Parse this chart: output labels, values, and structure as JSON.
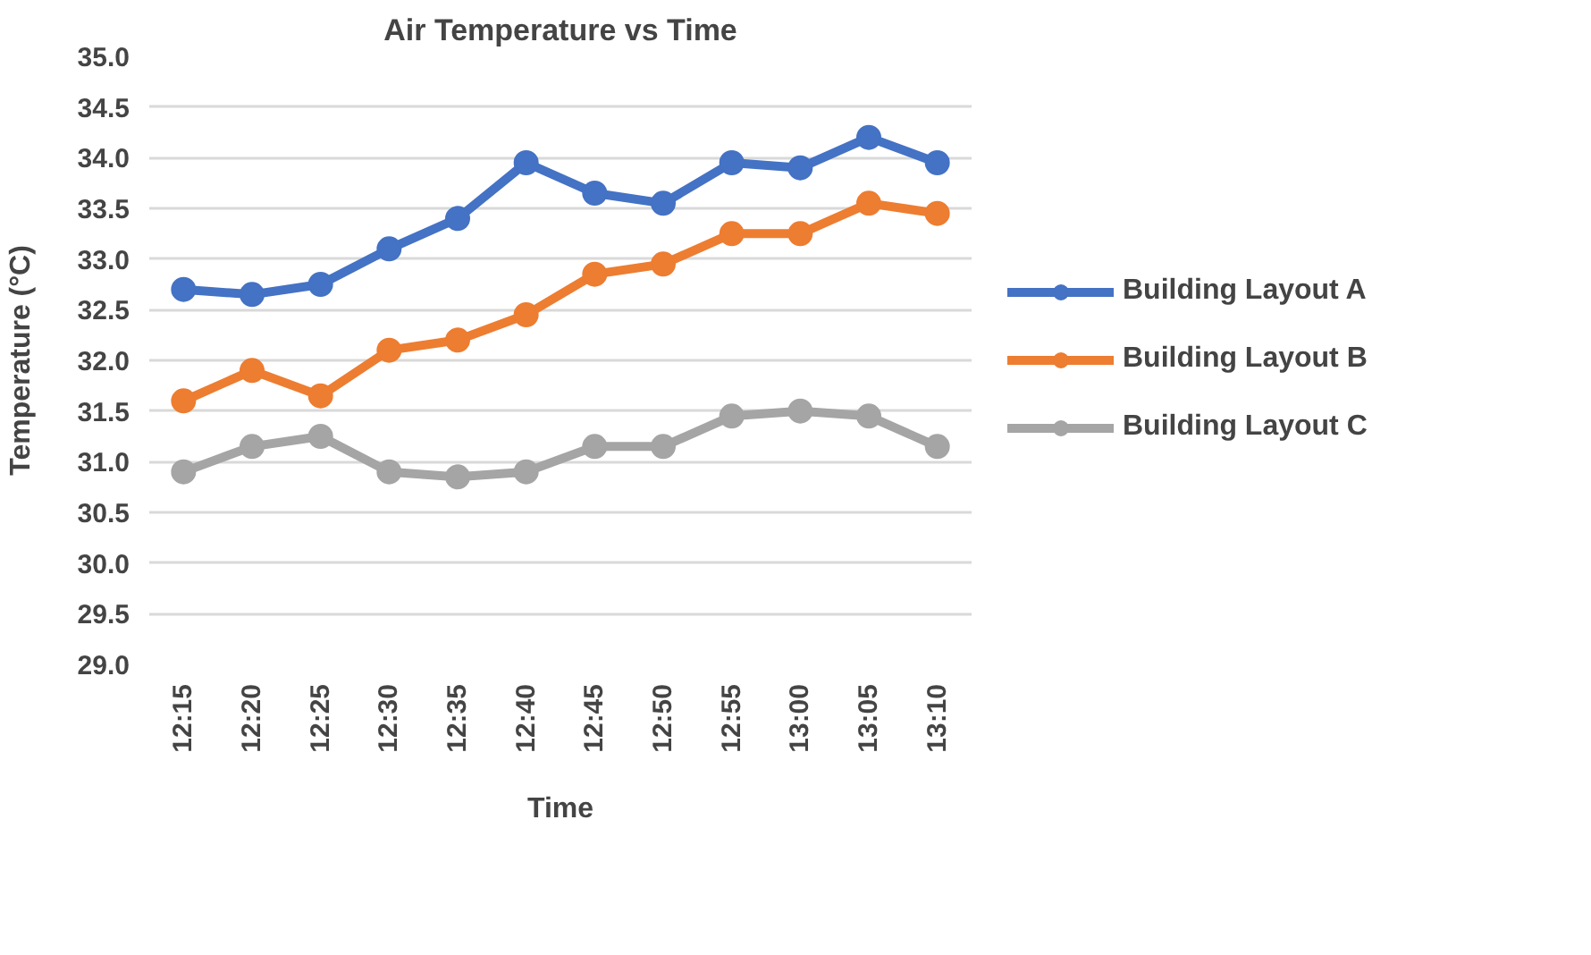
{
  "chart_data": {
    "type": "line",
    "title": "Air Temperature vs Time",
    "xlabel": "Time",
    "ylabel": "Temperature (°C)",
    "categories": [
      "12:15",
      "12:20",
      "12:25",
      "12:30",
      "12:35",
      "12:40",
      "12:45",
      "12:50",
      "12:55",
      "13:00",
      "13:05",
      "13:10"
    ],
    "series": [
      {
        "name": "Building Layout A",
        "color": "#4472c4",
        "values": [
          32.7,
          32.65,
          32.75,
          33.1,
          33.4,
          33.95,
          33.65,
          33.55,
          33.95,
          33.9,
          34.2,
          33.95
        ]
      },
      {
        "name": "Building Layout B",
        "color": "#ed7d31",
        "values": [
          31.6,
          31.9,
          31.65,
          32.1,
          32.2,
          32.45,
          32.85,
          32.95,
          33.25,
          33.25,
          33.55,
          33.45
        ]
      },
      {
        "name": "Building Layout C",
        "color": "#a5a5a5",
        "values": [
          30.9,
          31.15,
          31.25,
          30.9,
          30.85,
          30.9,
          31.15,
          31.15,
          31.45,
          31.5,
          31.45,
          31.15
        ]
      }
    ],
    "ylim": [
      29.0,
      35.0
    ],
    "yticks": [
      {
        "value": 29,
        "label": "29.0"
      },
      {
        "value": 29.5,
        "label": "29.5"
      },
      {
        "value": 30,
        "label": "30.0"
      },
      {
        "value": 30.5,
        "label": "30.5"
      },
      {
        "value": 31,
        "label": "31.0"
      },
      {
        "value": 31.5,
        "label": "31.5"
      },
      {
        "value": 32,
        "label": "32.0"
      },
      {
        "value": 32.5,
        "label": "32.5"
      },
      {
        "value": 33,
        "label": "33.0"
      },
      {
        "value": 33.5,
        "label": "33.5"
      },
      {
        "value": 34,
        "label": "34.0"
      },
      {
        "value": 34.5,
        "label": "34.5"
      },
      {
        "value": 35,
        "label": "35.0"
      }
    ],
    "grid": "y",
    "legend": "right",
    "marker": "circle",
    "line_style": "solid"
  }
}
